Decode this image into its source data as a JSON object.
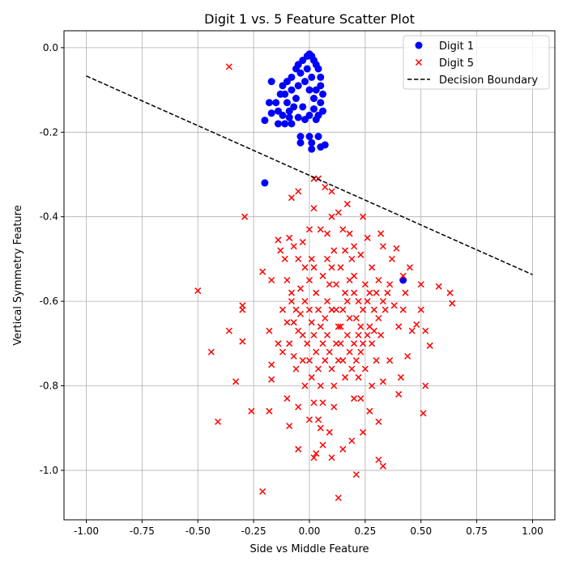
{
  "chart_data": {
    "type": "scatter",
    "title": "Digit 1 vs. 5 Feature Scatter Plot",
    "xlabel": "Side vs Middle Feature",
    "ylabel": "Vertical Symmetry Feature",
    "xlim": [
      -1.1,
      1.1
    ],
    "ylim": [
      -1.117,
      0.04
    ],
    "xticks": [
      "-1.00",
      "-0.75",
      "-0.50",
      "-0.25",
      "0.00",
      "0.25",
      "0.50",
      "0.75",
      "1.00"
    ],
    "xtick_values": [
      -1,
      -0.75,
      -0.5,
      -0.25,
      0,
      0.25,
      0.5,
      0.75,
      1
    ],
    "yticks": [
      "0.0",
      "-0.2",
      "-0.4",
      "-0.6",
      "-0.8",
      "-1.0"
    ],
    "ytick_values": [
      0,
      -0.2,
      -0.4,
      -0.6,
      -0.8,
      -1.0
    ],
    "grid": true,
    "legend_placement": "top-right",
    "series": [
      {
        "name": "Digit 1",
        "marker": "circle",
        "color": "#0000ff",
        "points": [
          [
            -0.2,
            -0.32
          ],
          [
            0.42,
            -0.55
          ],
          [
            -0.2,
            -0.172
          ],
          [
            -0.18,
            -0.13
          ],
          [
            -0.17,
            -0.08
          ],
          [
            -0.04,
            -0.21
          ],
          [
            -0.04,
            -0.225
          ],
          [
            0.0,
            -0.21
          ],
          [
            0.01,
            -0.225
          ],
          [
            0.01,
            -0.24
          ],
          [
            0.04,
            -0.21
          ],
          [
            0.05,
            -0.235
          ],
          [
            0.07,
            -0.23
          ],
          [
            -0.17,
            -0.155
          ],
          [
            -0.14,
            -0.18
          ],
          [
            -0.11,
            -0.18
          ],
          [
            -0.08,
            -0.18
          ],
          [
            0.0,
            -0.015
          ],
          [
            -0.01,
            -0.02
          ],
          [
            0.01,
            -0.02
          ],
          [
            -0.03,
            -0.03
          ],
          [
            0.02,
            -0.03
          ],
          [
            -0.05,
            -0.04
          ],
          [
            0.03,
            -0.04
          ],
          [
            -0.06,
            -0.05
          ],
          [
            0.04,
            -0.05
          ],
          [
            -0.08,
            -0.07
          ],
          [
            0.05,
            -0.07
          ],
          [
            -0.1,
            -0.08
          ],
          [
            -0.12,
            -0.09
          ],
          [
            0.05,
            -0.09
          ],
          [
            -0.13,
            -0.11
          ],
          [
            0.06,
            -0.11
          ],
          [
            -0.15,
            -0.13
          ],
          [
            0.05,
            -0.13
          ],
          [
            -0.14,
            -0.15
          ],
          [
            0.06,
            -0.15
          ],
          [
            -0.12,
            -0.16
          ],
          [
            0.04,
            -0.16
          ],
          [
            -0.09,
            -0.165
          ],
          [
            0.03,
            -0.17
          ],
          [
            -0.05,
            -0.165
          ],
          [
            -0.02,
            -0.17
          ],
          [
            0.0,
            -0.16
          ],
          [
            -0.04,
            -0.06
          ],
          [
            -0.02,
            -0.08
          ],
          [
            0.0,
            -0.1
          ],
          [
            0.02,
            -0.12
          ],
          [
            -0.06,
            -0.12
          ],
          [
            -0.08,
            -0.1
          ],
          [
            -0.1,
            -0.13
          ],
          [
            -0.03,
            -0.14
          ],
          [
            0.01,
            -0.07
          ],
          [
            -0.07,
            -0.14
          ],
          [
            0.03,
            -0.1
          ],
          [
            -0.01,
            -0.05
          ],
          [
            -0.05,
            -0.09
          ],
          [
            0.02,
            -0.145
          ],
          [
            -0.11,
            -0.11
          ],
          [
            -0.09,
            -0.15
          ]
        ]
      },
      {
        "name": "Digit 5",
        "marker": "x",
        "color": "#ff0000",
        "points": [
          [
            -0.36,
            -0.045
          ],
          [
            -0.5,
            -0.575
          ],
          [
            -0.29,
            -0.4
          ],
          [
            -0.44,
            -0.72
          ],
          [
            -0.41,
            -0.885
          ],
          [
            -0.33,
            -0.79
          ],
          [
            -0.36,
            -0.67
          ],
          [
            -0.3,
            -0.61
          ],
          [
            -0.3,
            -0.62
          ],
          [
            -0.3,
            -0.695
          ],
          [
            -0.26,
            -0.86
          ],
          [
            -0.21,
            -1.05
          ],
          [
            -0.21,
            -0.53
          ],
          [
            0.13,
            -1.065
          ],
          [
            0.21,
            -1.01
          ],
          [
            0.58,
            -0.565
          ],
          [
            0.63,
            -0.58
          ],
          [
            0.64,
            -0.605
          ],
          [
            0.52,
            -0.67
          ],
          [
            0.52,
            -0.8
          ],
          [
            0.51,
            -0.865
          ],
          [
            0.54,
            -0.705
          ],
          [
            0.5,
            -0.62
          ],
          [
            0.5,
            -0.56
          ],
          [
            0.33,
            -0.99
          ],
          [
            0.31,
            -0.975
          ],
          [
            -0.08,
            -0.355
          ],
          [
            -0.05,
            -0.34
          ],
          [
            0.02,
            -0.31
          ],
          [
            0.04,
            -0.31
          ],
          [
            0.07,
            -0.33
          ],
          [
            0.1,
            -0.34
          ],
          [
            0.24,
            -0.4
          ],
          [
            0.17,
            -0.37
          ],
          [
            0.32,
            -0.44
          ],
          [
            0.33,
            -0.47
          ],
          [
            0.39,
            -0.475
          ],
          [
            0.45,
            -0.52
          ],
          [
            0.42,
            -0.54
          ],
          [
            0.41,
            -0.78
          ],
          [
            0.4,
            -0.82
          ],
          [
            0.44,
            -0.73
          ],
          [
            0.46,
            -0.67
          ],
          [
            0.48,
            -0.655
          ],
          [
            -0.17,
            -0.55
          ],
          [
            -0.14,
            -0.455
          ],
          [
            -0.13,
            -0.48
          ],
          [
            -0.11,
            -0.5
          ],
          [
            -0.09,
            -0.45
          ],
          [
            -0.07,
            -0.47
          ],
          [
            -0.05,
            -0.5
          ],
          [
            -0.03,
            -0.46
          ],
          [
            0.0,
            -0.43
          ],
          [
            0.02,
            -0.38
          ],
          [
            0.05,
            -0.43
          ],
          [
            0.08,
            -0.44
          ],
          [
            0.1,
            -0.4
          ],
          [
            0.13,
            -0.39
          ],
          [
            0.15,
            -0.43
          ],
          [
            0.18,
            -0.44
          ],
          [
            0.2,
            -0.47
          ],
          [
            0.23,
            -0.49
          ],
          [
            0.26,
            -0.45
          ],
          [
            0.28,
            -0.52
          ],
          [
            0.31,
            -0.55
          ],
          [
            0.35,
            -0.58
          ],
          [
            0.37,
            -0.5
          ],
          [
            0.34,
            -0.62
          ],
          [
            -0.18,
            -0.67
          ],
          [
            -0.17,
            -0.75
          ],
          [
            -0.17,
            -0.785
          ],
          [
            -0.18,
            -0.86
          ],
          [
            -0.14,
            -0.7
          ],
          [
            -0.12,
            -0.72
          ],
          [
            -0.1,
            -0.83
          ],
          [
            -0.09,
            -0.895
          ],
          [
            -0.08,
            -0.6
          ],
          [
            -0.07,
            -0.65
          ],
          [
            -0.06,
            -0.76
          ],
          [
            -0.05,
            -0.85
          ],
          [
            -0.05,
            -0.95
          ],
          [
            -0.03,
            -0.68
          ],
          [
            -0.02,
            -0.8
          ],
          [
            0.0,
            -0.88
          ],
          [
            0.02,
            -0.97
          ],
          [
            0.03,
            -0.96
          ],
          [
            0.05,
            -0.9
          ],
          [
            0.06,
            -0.94
          ],
          [
            0.09,
            -0.91
          ],
          [
            0.1,
            -0.97
          ],
          [
            0.11,
            -0.85
          ],
          [
            0.15,
            -0.95
          ],
          [
            0.19,
            -0.93
          ],
          [
            0.2,
            -0.83
          ],
          [
            0.23,
            -0.83
          ],
          [
            0.24,
            -0.91
          ],
          [
            0.27,
            -0.86
          ],
          [
            0.28,
            -0.8
          ],
          [
            0.31,
            -0.885
          ],
          [
            0.3,
            -0.74
          ],
          [
            0.33,
            -0.79
          ],
          [
            0.36,
            -0.74
          ],
          [
            -0.1,
            -0.55
          ],
          [
            -0.08,
            -0.58
          ],
          [
            -0.06,
            -0.62
          ],
          [
            -0.04,
            -0.57
          ],
          [
            -0.02,
            -0.6
          ],
          [
            0.0,
            -0.55
          ],
          [
            0.01,
            -0.5
          ],
          [
            0.02,
            -0.52
          ],
          [
            0.03,
            -0.58
          ],
          [
            0.04,
            -0.62
          ],
          [
            0.05,
            -0.66
          ],
          [
            0.06,
            -0.7
          ],
          [
            0.07,
            -0.74
          ],
          [
            0.08,
            -0.6
          ],
          [
            0.09,
            -0.56
          ],
          [
            0.1,
            -0.52
          ],
          [
            0.11,
            -0.48
          ],
          [
            0.12,
            -0.62
          ],
          [
            0.13,
            -0.66
          ],
          [
            0.14,
            -0.7
          ],
          [
            0.15,
            -0.74
          ],
          [
            0.16,
            -0.78
          ],
          [
            0.17,
            -0.6
          ],
          [
            0.18,
            -0.55
          ],
          [
            0.19,
            -0.5
          ],
          [
            0.2,
            -0.58
          ],
          [
            0.21,
            -0.64
          ],
          [
            0.22,
            -0.68
          ],
          [
            0.23,
            -0.72
          ],
          [
            0.24,
            -0.62
          ],
          [
            0.25,
            -0.56
          ],
          [
            0.26,
            -0.6
          ],
          [
            0.27,
            -0.66
          ],
          [
            0.28,
            -0.7
          ],
          [
            0.29,
            -0.62
          ],
          [
            0.3,
            -0.58
          ],
          [
            0.31,
            -0.64
          ],
          [
            0.32,
            -0.68
          ],
          [
            -0.01,
            -0.7
          ],
          [
            0.0,
            -0.74
          ],
          [
            0.01,
            -0.78
          ],
          [
            0.02,
            -0.68
          ],
          [
            0.03,
            -0.72
          ],
          [
            0.04,
            -0.76
          ],
          [
            0.05,
            -0.8
          ],
          [
            0.06,
            -0.84
          ],
          [
            0.07,
            -0.64
          ],
          [
            0.08,
            -0.68
          ],
          [
            0.09,
            -0.72
          ],
          [
            0.1,
            -0.76
          ],
          [
            0.11,
            -0.8
          ],
          [
            0.12,
            -0.7
          ],
          [
            0.13,
            -0.74
          ],
          [
            0.14,
            -0.66
          ],
          [
            0.15,
            -0.62
          ],
          [
            0.16,
            -0.58
          ],
          [
            0.17,
            -0.68
          ],
          [
            0.18,
            -0.72
          ],
          [
            0.19,
            -0.76
          ],
          [
            0.2,
            -0.7
          ],
          [
            0.21,
            -0.74
          ],
          [
            0.22,
            -0.78
          ],
          [
            0.23,
            -0.66
          ],
          [
            0.24,
            -0.7
          ],
          [
            0.25,
            -0.76
          ],
          [
            0.26,
            -0.68
          ],
          [
            -0.12,
            -0.62
          ],
          [
            -0.1,
            -0.65
          ],
          [
            -0.09,
            -0.7
          ],
          [
            -0.07,
            -0.73
          ],
          [
            -0.05,
            -0.67
          ],
          [
            -0.04,
            -0.63
          ],
          [
            -0.03,
            -0.74
          ],
          [
            -0.02,
            -0.52
          ],
          [
            0.0,
            -0.62
          ],
          [
            0.01,
            -0.65
          ],
          [
            0.02,
            -0.84
          ],
          [
            0.04,
            -0.88
          ],
          [
            0.06,
            -0.54
          ],
          [
            0.08,
            -0.5
          ],
          [
            0.1,
            -0.62
          ],
          [
            0.12,
            -0.56
          ],
          [
            0.14,
            -0.52
          ],
          [
            0.16,
            -0.48
          ],
          [
            0.18,
            -0.64
          ],
          [
            0.2,
            -0.54
          ],
          [
            0.22,
            -0.6
          ],
          [
            0.27,
            -0.58
          ],
          [
            0.29,
            -0.67
          ],
          [
            0.33,
            -0.6
          ],
          [
            0.36,
            -0.56
          ],
          [
            0.38,
            -0.61
          ],
          [
            0.4,
            -0.66
          ],
          [
            0.42,
            -0.62
          ],
          [
            0.43,
            -0.58
          ]
        ]
      },
      {
        "name": "Decision Boundary",
        "type": "line",
        "style": "dashed",
        "color": "#000000",
        "points": [
          [
            -1.0,
            -0.067
          ],
          [
            1.0,
            -0.537
          ]
        ]
      }
    ]
  }
}
